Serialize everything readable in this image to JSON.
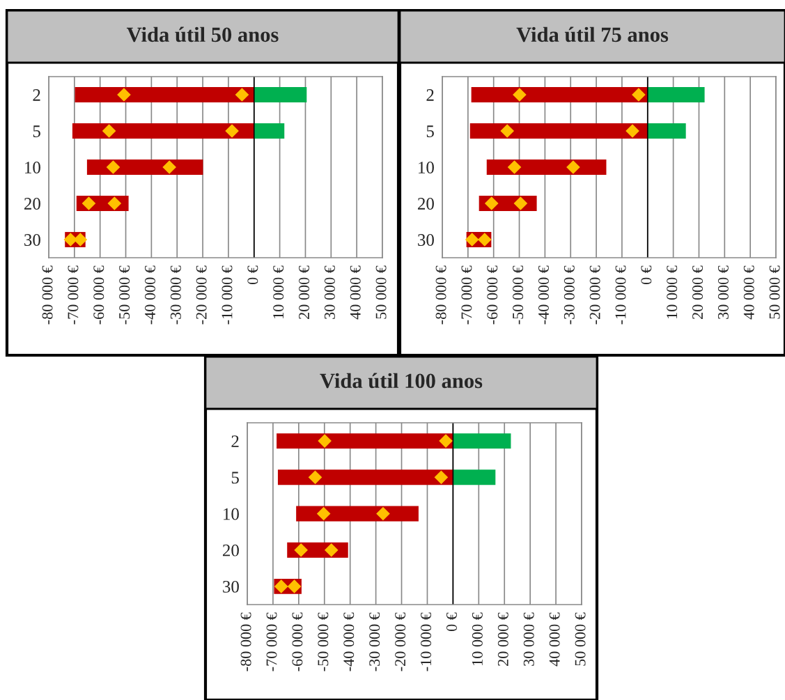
{
  "chart_data": [
    {
      "type": "bar",
      "orientation": "horizontal",
      "title": "Vida útil 50 anos",
      "categories": [
        "2",
        "5",
        "10",
        "20",
        "30"
      ],
      "grid": "x",
      "xlim": [
        -80000,
        50000
      ],
      "xticks": [
        {
          "value": -80000,
          "label": "-80 000 €"
        },
        {
          "value": -70000,
          "label": "-70 000 €"
        },
        {
          "value": -60000,
          "label": "-60 000 €"
        },
        {
          "value": -50000,
          "label": "-50 000 €"
        },
        {
          "value": -40000,
          "label": "-40 000 €"
        },
        {
          "value": -30000,
          "label": "-30 000 €"
        },
        {
          "value": -20000,
          "label": "-20 000 €"
        },
        {
          "value": -10000,
          "label": "-10 000 €"
        },
        {
          "value": 0,
          "label": "0 €"
        },
        {
          "value": 10000,
          "label": "10 000 €"
        },
        {
          "value": 20000,
          "label": "20 000 €"
        },
        {
          "value": 30000,
          "label": "30 000 €"
        },
        {
          "value": 40000,
          "label": "40 000 €"
        },
        {
          "value": 50000,
          "label": "50 000 €"
        }
      ],
      "series": [
        {
          "color": "#c00000",
          "base": [
            -69800,
            -70800,
            -65100,
            -69200,
            -73700
          ],
          "values": [
            69800,
            70800,
            45200,
            20300,
            8000
          ]
        },
        {
          "color": "#00b050",
          "base": [
            0,
            0,
            null,
            null,
            null
          ],
          "values": [
            20500,
            11800,
            null,
            null,
            null
          ]
        },
        {
          "type": "scatter",
          "marker": "diamond",
          "color": "#ffc000",
          "values": [
            -50700,
            -56500,
            -54900,
            -64400,
            -71500
          ]
        },
        {
          "type": "scatter",
          "marker": "diamond",
          "color": "#ffc000",
          "values": [
            -4700,
            -8600,
            -33000,
            -54400,
            -67700
          ]
        }
      ]
    },
    {
      "type": "bar",
      "orientation": "horizontal",
      "title": "Vida útil 75 anos",
      "categories": [
        "2",
        "5",
        "10",
        "20",
        "30"
      ],
      "grid": "x",
      "xlim": [
        -80000,
        50000
      ],
      "xticks": [
        {
          "value": -80000,
          "label": "-80 000 €"
        },
        {
          "value": -70000,
          "label": "-70 000 €"
        },
        {
          "value": -60000,
          "label": "-60 000 €"
        },
        {
          "value": -50000,
          "label": "-50 000 €"
        },
        {
          "value": -40000,
          "label": "-40 000 €"
        },
        {
          "value": -30000,
          "label": "-30 000 €"
        },
        {
          "value": -20000,
          "label": "-20 000 €"
        },
        {
          "value": -10000,
          "label": "-10 000 €"
        },
        {
          "value": 0,
          "label": "0 €"
        },
        {
          "value": 10000,
          "label": "10 000 €"
        },
        {
          "value": 20000,
          "label": "20 000 €"
        },
        {
          "value": 30000,
          "label": "30 000 €"
        },
        {
          "value": 40000,
          "label": "40 000 €"
        },
        {
          "value": 50000,
          "label": "50 000 €"
        }
      ],
      "series": [
        {
          "color": "#c00000",
          "base": [
            -68700,
            -69200,
            -62700,
            -65700,
            -70600
          ],
          "values": [
            68700,
            69200,
            46600,
            22500,
            9700
          ]
        },
        {
          "color": "#00b050",
          "base": [
            0,
            0,
            null,
            null,
            null
          ],
          "values": [
            22200,
            14900,
            null,
            null,
            null
          ]
        },
        {
          "type": "scatter",
          "marker": "diamond",
          "color": "#ffc000",
          "values": [
            -49900,
            -54700,
            -51900,
            -60800,
            -68400
          ]
        },
        {
          "type": "scatter",
          "marker": "diamond",
          "color": "#ffc000",
          "values": [
            -3500,
            -5900,
            -29000,
            -49500,
            -63500
          ]
        }
      ]
    },
    {
      "type": "bar",
      "orientation": "horizontal",
      "title": "Vida útil 100 anos",
      "categories": [
        "2",
        "5",
        "10",
        "20",
        "30"
      ],
      "grid": "x",
      "xlim": [
        -80000,
        50000
      ],
      "xticks": [
        {
          "value": -80000,
          "label": "-80 000 €"
        },
        {
          "value": -70000,
          "label": "-70 000 €"
        },
        {
          "value": -60000,
          "label": "-60 000 €"
        },
        {
          "value": -50000,
          "label": "-50 000 €"
        },
        {
          "value": -40000,
          "label": "-40 000 €"
        },
        {
          "value": -30000,
          "label": "-30 000 €"
        },
        {
          "value": -20000,
          "label": "-20 000 €"
        },
        {
          "value": -10000,
          "label": "-10 000 €"
        },
        {
          "value": 0,
          "label": "0 €"
        },
        {
          "value": 10000,
          "label": "10 000 €"
        },
        {
          "value": 20000,
          "label": "20 000 €"
        },
        {
          "value": 30000,
          "label": "30 000 €"
        },
        {
          "value": 40000,
          "label": "40 000 €"
        },
        {
          "value": 50000,
          "label": "50 000 €"
        }
      ],
      "series": [
        {
          "color": "#c00000",
          "base": [
            -68600,
            -68100,
            -61000,
            -64500,
            -69600
          ],
          "values": [
            68600,
            68100,
            47600,
            23700,
            10700
          ]
        },
        {
          "color": "#00b050",
          "base": [
            0,
            0,
            null,
            null,
            null
          ],
          "values": [
            22500,
            16500,
            null,
            null,
            null
          ]
        },
        {
          "type": "scatter",
          "marker": "diamond",
          "color": "#ffc000",
          "values": [
            -49900,
            -53600,
            -50300,
            -59100,
            -66800
          ]
        },
        {
          "type": "scatter",
          "marker": "diamond",
          "color": "#ffc000",
          "values": [
            -2800,
            -4600,
            -27200,
            -47300,
            -61700
          ]
        }
      ]
    }
  ]
}
